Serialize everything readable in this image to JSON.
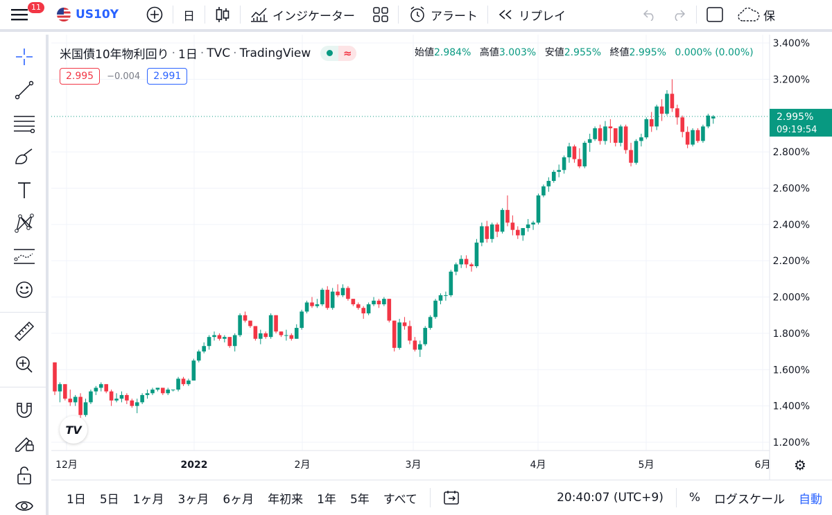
{
  "topbar": {
    "notification_count": "11",
    "symbol": "US10Y",
    "interval": "日",
    "indicators_label": "インジケーター",
    "alert_label": "アラート",
    "replay_label": "リプレイ",
    "save_label": "保"
  },
  "legend": {
    "title": "米国債10年物利回り",
    "interval": "1日",
    "source": "TVC",
    "provider": "TradingView",
    "approx_symbol": "≈",
    "ohlc": {
      "open_label": "始値",
      "open": "2.984%",
      "high_label": "高値",
      "high": "3.003%",
      "low_label": "安値",
      "low": "2.955%",
      "close_label": "終値",
      "close": "2.995%",
      "change": "0.000% (0.00%)"
    },
    "sell_price": "2.995",
    "spread": "−0.004",
    "buy_price": "2.991"
  },
  "price_axis": {
    "ticks": [
      "3.400%",
      "3.200%",
      "2.800%",
      "2.600%",
      "2.400%",
      "2.200%",
      "2.000%",
      "1.800%",
      "1.600%",
      "1.400%",
      "1.200%"
    ],
    "current_price": "2.995%",
    "countdown": "09:19:54"
  },
  "time_axis": {
    "labels": [
      "12月",
      "2022",
      "2月",
      "3月",
      "4月",
      "5月",
      "6月"
    ]
  },
  "bottombar": {
    "ranges": [
      "1日",
      "5日",
      "1ヶ月",
      "3ヶ月",
      "6ヶ月",
      "年初来",
      "1年",
      "5年",
      "すべて"
    ],
    "clock": "20:40:07 (UTC+9)",
    "percent_label": "%",
    "log_label": "ログスケール",
    "auto_label": "自動"
  },
  "colors": {
    "up": "#089981",
    "down": "#f23645",
    "accent": "#2962ff"
  },
  "chart_data": {
    "type": "candlestick",
    "symbol": "US10Y",
    "ylim": [
      1.2,
      3.4
    ],
    "last": 2.995,
    "ohlc": [
      [
        1.64,
        1.64,
        1.46,
        1.48
      ],
      [
        1.48,
        1.53,
        1.42,
        1.52
      ],
      [
        1.52,
        1.52,
        1.43,
        1.44
      ],
      [
        1.44,
        1.49,
        1.4,
        1.42
      ],
      [
        1.42,
        1.46,
        1.4,
        1.45
      ],
      [
        1.45,
        1.47,
        1.33,
        1.35
      ],
      [
        1.35,
        1.44,
        1.34,
        1.42
      ],
      [
        1.42,
        1.49,
        1.41,
        1.48
      ],
      [
        1.48,
        1.51,
        1.46,
        1.5
      ],
      [
        1.5,
        1.53,
        1.48,
        1.52
      ],
      [
        1.52,
        1.52,
        1.47,
        1.48
      ],
      [
        1.48,
        1.49,
        1.4,
        1.43
      ],
      [
        1.43,
        1.47,
        1.42,
        1.44
      ],
      [
        1.44,
        1.48,
        1.42,
        1.46
      ],
      [
        1.46,
        1.47,
        1.41,
        1.43
      ],
      [
        1.43,
        1.44,
        1.39,
        1.4
      ],
      [
        1.4,
        1.44,
        1.36,
        1.42
      ],
      [
        1.42,
        1.47,
        1.41,
        1.46
      ],
      [
        1.46,
        1.49,
        1.44,
        1.47
      ],
      [
        1.47,
        1.5,
        1.46,
        1.49
      ],
      [
        1.49,
        1.5,
        1.48,
        1.5
      ],
      [
        1.5,
        1.5,
        1.46,
        1.47
      ],
      [
        1.47,
        1.5,
        1.46,
        1.49
      ],
      [
        1.49,
        1.49,
        1.48,
        1.49
      ],
      [
        1.49,
        1.56,
        1.48,
        1.55
      ],
      [
        1.55,
        1.56,
        1.51,
        1.52
      ],
      [
        1.52,
        1.55,
        1.51,
        1.54
      ],
      [
        1.54,
        1.66,
        1.54,
        1.65
      ],
      [
        1.65,
        1.71,
        1.64,
        1.7
      ],
      [
        1.7,
        1.75,
        1.69,
        1.73
      ],
      [
        1.73,
        1.79,
        1.71,
        1.78
      ],
      [
        1.78,
        1.81,
        1.76,
        1.79
      ],
      [
        1.79,
        1.8,
        1.76,
        1.77
      ],
      [
        1.77,
        1.79,
        1.75,
        1.78
      ],
      [
        1.78,
        1.78,
        1.72,
        1.73
      ],
      [
        1.73,
        1.8,
        1.7,
        1.79
      ],
      [
        1.79,
        1.91,
        1.78,
        1.9
      ],
      [
        1.9,
        1.92,
        1.86,
        1.87
      ],
      [
        1.87,
        1.87,
        1.83,
        1.84
      ],
      [
        1.84,
        1.84,
        1.76,
        1.77
      ],
      [
        1.77,
        1.82,
        1.74,
        1.8
      ],
      [
        1.8,
        1.81,
        1.77,
        1.78
      ],
      [
        1.78,
        1.91,
        1.77,
        1.9
      ],
      [
        1.9,
        1.9,
        1.8,
        1.81
      ],
      [
        1.81,
        1.81,
        1.78,
        1.79
      ],
      [
        1.79,
        1.82,
        1.76,
        1.79
      ],
      [
        1.79,
        1.8,
        1.76,
        1.77
      ],
      [
        1.77,
        1.85,
        1.77,
        1.83
      ],
      [
        1.83,
        1.93,
        1.82,
        1.92
      ],
      [
        1.92,
        1.98,
        1.91,
        1.97
      ],
      [
        1.97,
        2.0,
        1.94,
        1.95
      ],
      [
        1.95,
        1.99,
        1.94,
        1.96
      ],
      [
        1.96,
        2.05,
        1.95,
        2.04
      ],
      [
        2.04,
        2.06,
        1.93,
        1.94
      ],
      [
        1.94,
        2.05,
        1.93,
        2.03
      ],
      [
        2.03,
        2.07,
        2.0,
        2.01
      ],
      [
        2.01,
        2.07,
        2.0,
        2.05
      ],
      [
        2.05,
        2.06,
        1.98,
        1.99
      ],
      [
        1.99,
        1.99,
        1.95,
        1.96
      ],
      [
        1.96,
        1.97,
        1.93,
        1.94
      ],
      [
        1.94,
        1.95,
        1.88,
        1.91
      ],
      [
        1.91,
        1.97,
        1.9,
        1.96
      ],
      [
        1.96,
        2.0,
        1.95,
        1.98
      ],
      [
        1.98,
        1.99,
        1.94,
        1.96
      ],
      [
        1.96,
        2.0,
        1.95,
        1.99
      ],
      [
        1.99,
        1.99,
        1.86,
        1.87
      ],
      [
        1.87,
        1.87,
        1.7,
        1.72
      ],
      [
        1.72,
        1.88,
        1.71,
        1.86
      ],
      [
        1.86,
        1.89,
        1.82,
        1.84
      ],
      [
        1.84,
        1.87,
        1.74,
        1.76
      ],
      [
        1.76,
        1.78,
        1.7,
        1.71
      ],
      [
        1.71,
        1.76,
        1.67,
        1.74
      ],
      [
        1.74,
        1.84,
        1.73,
        1.83
      ],
      [
        1.83,
        1.9,
        1.82,
        1.89
      ],
      [
        1.89,
        1.99,
        1.88,
        1.98
      ],
      [
        1.98,
        2.02,
        1.96,
        2.01
      ],
      [
        2.01,
        2.03,
        1.98,
        2.01
      ],
      [
        2.01,
        2.15,
        2.0,
        2.14
      ],
      [
        2.14,
        2.19,
        2.12,
        2.18
      ],
      [
        2.18,
        2.23,
        2.16,
        2.21
      ],
      [
        2.21,
        2.23,
        2.16,
        2.18
      ],
      [
        2.18,
        2.19,
        2.14,
        2.17
      ],
      [
        2.17,
        2.32,
        2.16,
        2.3
      ],
      [
        2.3,
        2.41,
        2.28,
        2.39
      ],
      [
        2.39,
        2.42,
        2.3,
        2.32
      ],
      [
        2.32,
        2.41,
        2.3,
        2.4
      ],
      [
        2.4,
        2.41,
        2.33,
        2.36
      ],
      [
        2.36,
        2.49,
        2.35,
        2.48
      ],
      [
        2.48,
        2.56,
        2.39,
        2.41
      ],
      [
        2.41,
        2.45,
        2.34,
        2.37
      ],
      [
        2.37,
        2.39,
        2.32,
        2.34
      ],
      [
        2.34,
        2.38,
        2.31,
        2.38
      ],
      [
        2.38,
        2.43,
        2.36,
        2.4
      ],
      [
        2.4,
        2.42,
        2.37,
        2.41
      ],
      [
        2.41,
        2.57,
        2.4,
        2.56
      ],
      [
        2.56,
        2.62,
        2.55,
        2.61
      ],
      [
        2.61,
        2.66,
        2.58,
        2.64
      ],
      [
        2.64,
        2.7,
        2.63,
        2.69
      ],
      [
        2.69,
        2.73,
        2.66,
        2.7
      ],
      [
        2.7,
        2.78,
        2.68,
        2.77
      ],
      [
        2.77,
        2.85,
        2.74,
        2.83
      ],
      [
        2.83,
        2.84,
        2.74,
        2.76
      ],
      [
        2.76,
        2.82,
        2.71,
        2.72
      ],
      [
        2.72,
        2.86,
        2.71,
        2.85
      ],
      [
        2.85,
        2.9,
        2.8,
        2.87
      ],
      [
        2.87,
        2.94,
        2.86,
        2.93
      ],
      [
        2.93,
        2.95,
        2.84,
        2.86
      ],
      [
        2.86,
        2.97,
        2.84,
        2.94
      ],
      [
        2.94,
        2.98,
        2.85,
        2.93
      ],
      [
        2.93,
        2.93,
        2.83,
        2.85
      ],
      [
        2.85,
        2.95,
        2.83,
        2.94
      ],
      [
        2.94,
        2.95,
        2.79,
        2.81
      ],
      [
        2.81,
        2.85,
        2.72,
        2.74
      ],
      [
        2.74,
        2.87,
        2.73,
        2.86
      ],
      [
        2.86,
        2.9,
        2.83,
        2.88
      ],
      [
        2.88,
        2.99,
        2.87,
        2.98
      ],
      [
        2.98,
        3.02,
        2.91,
        2.94
      ],
      [
        2.94,
        3.06,
        2.92,
        3.05
      ],
      [
        3.05,
        3.09,
        2.97,
        3.01
      ],
      [
        3.01,
        3.14,
        3.0,
        3.12
      ],
      [
        3.12,
        3.2,
        3.02,
        3.04
      ],
      [
        3.04,
        3.06,
        2.95,
        2.99
      ],
      [
        2.99,
        3.0,
        2.88,
        2.91
      ],
      [
        2.91,
        2.94,
        2.82,
        2.84
      ],
      [
        2.84,
        2.93,
        2.83,
        2.92
      ],
      [
        2.92,
        2.93,
        2.85,
        2.86
      ],
      [
        2.86,
        2.95,
        2.85,
        2.94
      ],
      [
        2.94,
        3.01,
        2.93,
        3.0
      ],
      [
        2.984,
        3.003,
        2.955,
        2.995
      ]
    ]
  }
}
